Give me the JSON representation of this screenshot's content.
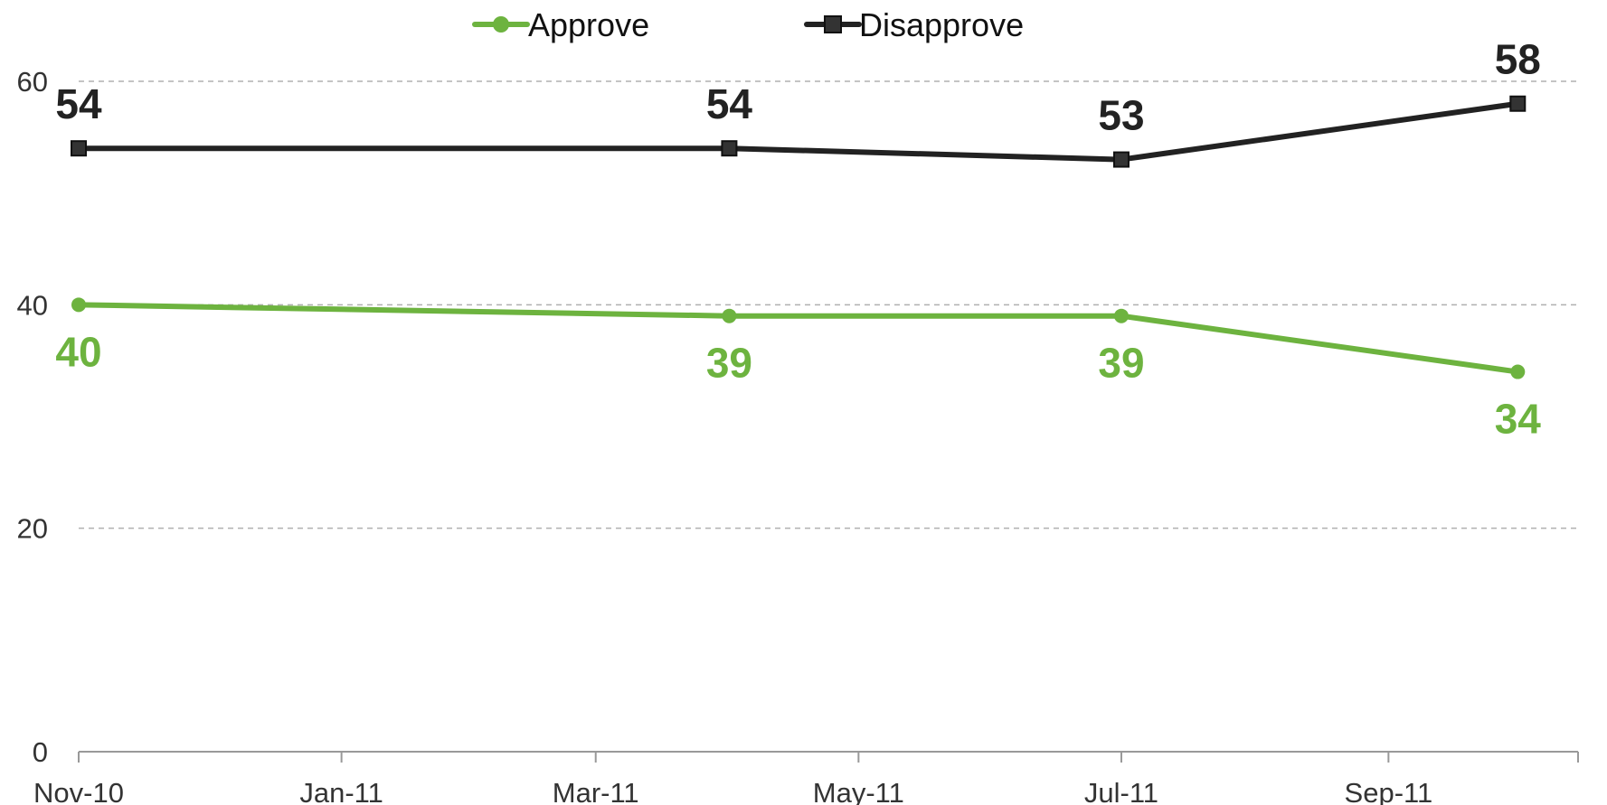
{
  "chart_data": {
    "type": "line",
    "x": [
      "2010-11-01",
      "2011-04-01",
      "2011-07-01",
      "2011-10-01"
    ],
    "series": [
      {
        "name": "Approve",
        "values": [
          40,
          39,
          39,
          34
        ],
        "labels": [
          "40",
          "39",
          "39",
          "34"
        ],
        "color": "#6db33f",
        "marker": "circle"
      },
      {
        "name": "Disapprove",
        "values": [
          54,
          54,
          53,
          58
        ],
        "labels": [
          "54",
          "54",
          "53",
          "58"
        ],
        "color": "#222222",
        "marker": "square"
      }
    ],
    "x_ticks": [
      {
        "value": "2010-11-01",
        "label": "Nov-10"
      },
      {
        "value": "2011-01-01",
        "label": "Jan-11"
      },
      {
        "value": "2011-03-01",
        "label": "Mar-11"
      },
      {
        "value": "2011-05-01",
        "label": "May-11"
      },
      {
        "value": "2011-07-01",
        "label": "Jul-11"
      },
      {
        "value": "2011-09-01",
        "label": "Sep-11"
      }
    ],
    "x_range": [
      "2010-11-01",
      "2011-10-15"
    ],
    "y_ticks": [
      0,
      20,
      40,
      60
    ],
    "y_tick_labels": [
      "0",
      "20",
      "40",
      "60"
    ],
    "ylim": [
      0,
      60
    ],
    "title": "",
    "xlabel": "",
    "ylabel": "",
    "grid": true,
    "legend_position": "top-center"
  }
}
